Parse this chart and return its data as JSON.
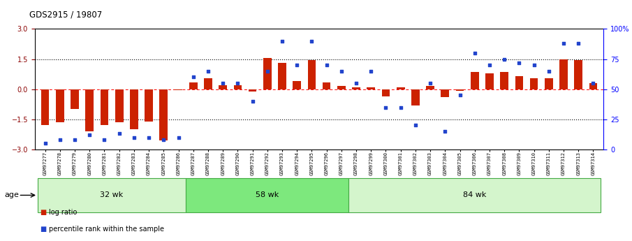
{
  "title": "GDS2915 / 19807",
  "samples": [
    "GSM97277",
    "GSM97278",
    "GSM97279",
    "GSM97280",
    "GSM97281",
    "GSM97282",
    "GSM97283",
    "GSM97284",
    "GSM97285",
    "GSM97286",
    "GSM97287",
    "GSM97288",
    "GSM97289",
    "GSM97290",
    "GSM97291",
    "GSM97292",
    "GSM97293",
    "GSM97294",
    "GSM97295",
    "GSM97296",
    "GSM97297",
    "GSM97298",
    "GSM97299",
    "GSM97300",
    "GSM97301",
    "GSM97302",
    "GSM97303",
    "GSM97304",
    "GSM97305",
    "GSM97306",
    "GSM97307",
    "GSM97308",
    "GSM97309",
    "GSM97310",
    "GSM97311",
    "GSM97312",
    "GSM97313",
    "GSM97314"
  ],
  "log_ratio": [
    -1.8,
    -1.65,
    -1.0,
    -2.1,
    -1.8,
    -1.65,
    -2.0,
    -1.6,
    -2.55,
    -0.05,
    0.35,
    0.55,
    0.2,
    0.2,
    -0.1,
    1.55,
    1.3,
    0.4,
    1.45,
    0.35,
    0.15,
    0.1,
    0.1,
    -0.35,
    0.1,
    -0.8,
    0.15,
    -0.4,
    -0.08,
    0.85,
    0.8,
    0.85,
    0.65,
    0.55,
    0.55,
    1.5,
    1.45,
    0.3
  ],
  "percentile": [
    5,
    8,
    8,
    12,
    8,
    13,
    10,
    10,
    8,
    10,
    60,
    65,
    55,
    55,
    40,
    65,
    90,
    70,
    90,
    70,
    65,
    55,
    65,
    35,
    35,
    20,
    55,
    15,
    45,
    80,
    70,
    75,
    72,
    70,
    65,
    88,
    88,
    55
  ],
  "groups": [
    {
      "label": "32 wk",
      "start": 0,
      "end": 9,
      "color": "#d4f5cc"
    },
    {
      "label": "58 wk",
      "start": 10,
      "end": 20,
      "color": "#7de87d"
    },
    {
      "label": "84 wk",
      "start": 21,
      "end": 37,
      "color": "#d4f5cc"
    }
  ],
  "ylim_left": [
    -3,
    3
  ],
  "ylim_right": [
    0,
    100
  ],
  "yticks_left": [
    -3,
    -1.5,
    0,
    1.5,
    3
  ],
  "yticks_right": [
    0,
    25,
    50,
    75,
    100
  ],
  "ytick_labels_right": [
    "0",
    "25",
    "50",
    "75",
    "100%"
  ],
  "bar_color": "#cc2200",
  "dot_color": "#2244cc",
  "bar_width": 0.55,
  "group_border_color": "#44aa44",
  "age_label": "age",
  "legend_items": [
    "log ratio",
    "percentile rank within the sample"
  ],
  "legend_colors": [
    "#cc2200",
    "#2244cc"
  ]
}
